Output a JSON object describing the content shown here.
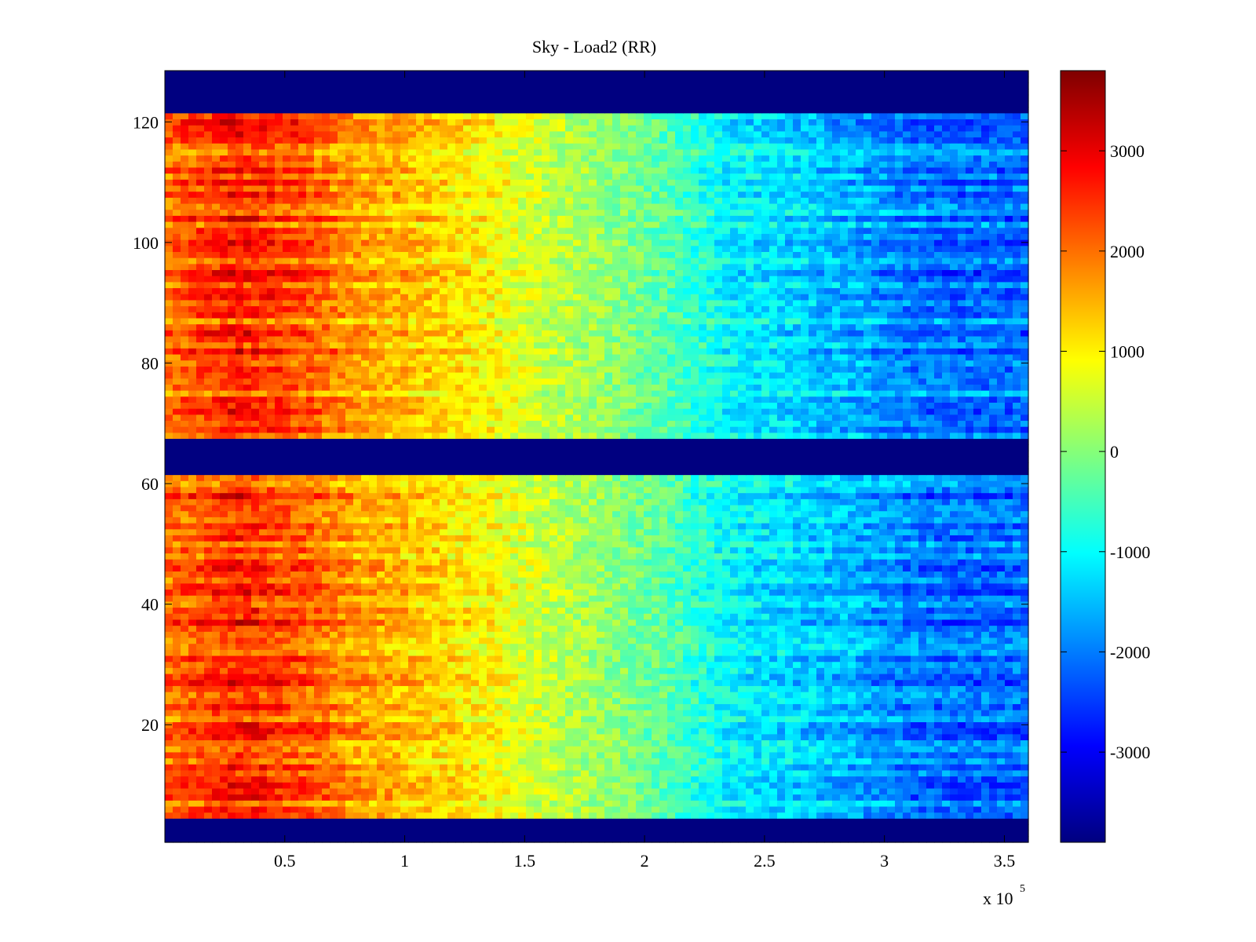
{
  "chart_data": {
    "type": "heatmap",
    "title": "Sky - Load2 (RR)",
    "xlabel": "",
    "ylabel": "",
    "x_multiplier_label": "x 10",
    "x_multiplier_exponent": "5",
    "xlim": [
      0,
      3.6
    ],
    "ylim": [
      1,
      128
    ],
    "x_ticks": [
      {
        "value": 0.5,
        "label": "0.5"
      },
      {
        "value": 1,
        "label": "1"
      },
      {
        "value": 1.5,
        "label": "1.5"
      },
      {
        "value": 2,
        "label": "2"
      },
      {
        "value": 2.5,
        "label": "2.5"
      },
      {
        "value": 3,
        "label": "3"
      },
      {
        "value": 3.5,
        "label": "3.5"
      }
    ],
    "y_ticks": [
      {
        "value": 20,
        "label": "20"
      },
      {
        "value": 40,
        "label": "40"
      },
      {
        "value": 60,
        "label": "60"
      },
      {
        "value": 80,
        "label": "80"
      },
      {
        "value": 100,
        "label": "100"
      },
      {
        "value": 120,
        "label": "120"
      }
    ],
    "colorbar": {
      "colormap": "jet",
      "clim": [
        -3900,
        3800
      ],
      "ticks": [
        {
          "value": 3000,
          "label": "3000"
        },
        {
          "value": 2000,
          "label": "2000"
        },
        {
          "value": 1000,
          "label": "1000"
        },
        {
          "value": 0,
          "label": "0"
        },
        {
          "value": -1000,
          "label": "-1000"
        },
        {
          "value": -2000,
          "label": "-2000"
        },
        {
          "value": -3000,
          "label": "-3000"
        }
      ]
    },
    "masked_rows": [
      {
        "from": 1,
        "to": 4
      },
      {
        "from": 62,
        "to": 67
      },
      {
        "from": 122,
        "to": 128
      }
    ],
    "column_trend": {
      "x": [
        0.0,
        0.3,
        0.55,
        0.8,
        1.1,
        1.35,
        1.6,
        1.9,
        2.1,
        2.35,
        2.6,
        2.9,
        3.1,
        3.3,
        3.6
      ],
      "values": [
        1700,
        2200,
        1900,
        1400,
        1100,
        800,
        400,
        0,
        -300,
        -900,
        -1100,
        -1400,
        -1700,
        -1800,
        -1800
      ]
    },
    "grid": false,
    "legend": "none"
  }
}
